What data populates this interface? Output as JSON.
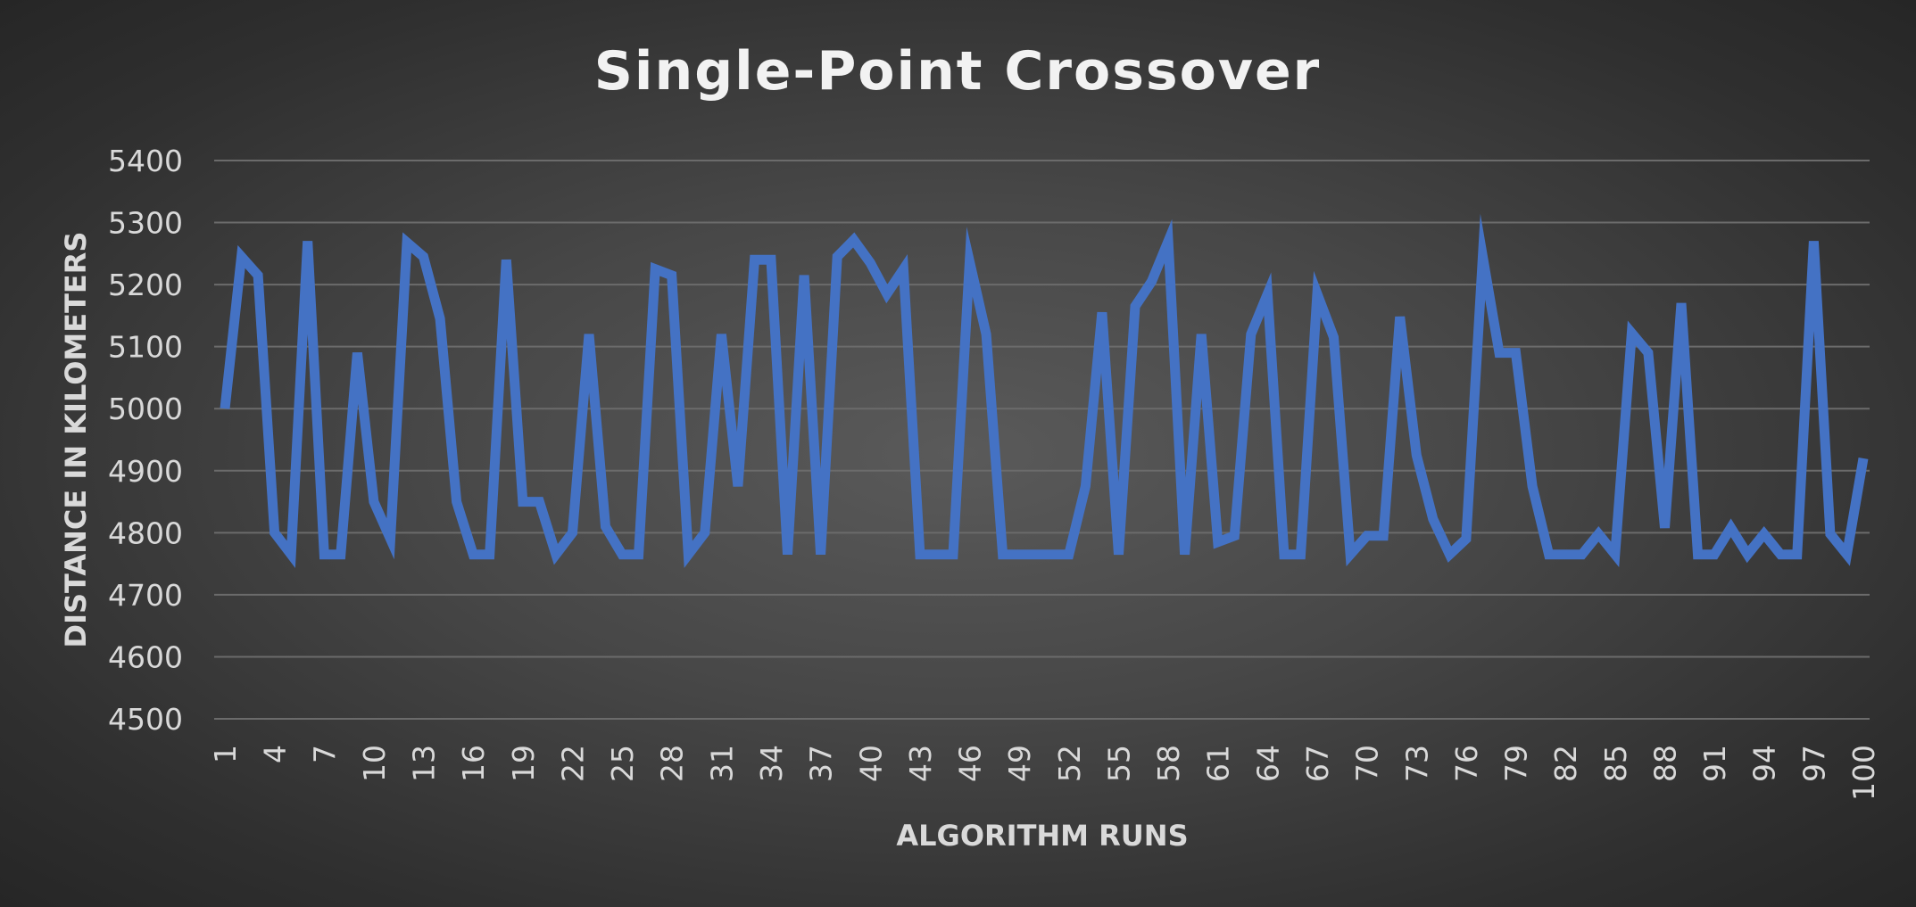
{
  "chart_data": {
    "type": "line",
    "title": "Single-Point Crossover",
    "xlabel": "ALGORITHM RUNS",
    "ylabel": "DISTANCE IN KILOMETERS",
    "ylim": [
      4500,
      5400
    ],
    "y_ticks": [
      4500,
      4600,
      4700,
      4800,
      4900,
      5000,
      5100,
      5200,
      5300,
      5400
    ],
    "y_tick_labels": [
      "4500",
      "4600",
      "4700",
      "4800",
      "4900",
      "5000",
      "5100",
      "5200",
      "5300",
      "5400"
    ],
    "x_tick_labels": [
      "1",
      "4",
      "7",
      "10",
      "13",
      "16",
      "19",
      "22",
      "25",
      "28",
      "31",
      "34",
      "37",
      "40",
      "43",
      "46",
      "49",
      "52",
      "55",
      "58",
      "61",
      "64",
      "67",
      "70",
      "73",
      "76",
      "79",
      "82",
      "85",
      "88",
      "91",
      "94",
      "97",
      "100"
    ],
    "grid": true,
    "legend": "none",
    "colors": {
      "line": "#4472c4",
      "grid": "#6b6b6b",
      "text": "#d9d9d9",
      "title": "#f2f2f2"
    },
    "x": [
      1,
      2,
      3,
      4,
      5,
      6,
      7,
      8,
      9,
      10,
      11,
      12,
      13,
      14,
      15,
      16,
      17,
      18,
      19,
      20,
      21,
      22,
      23,
      24,
      25,
      26,
      27,
      28,
      29,
      30,
      31,
      32,
      33,
      34,
      35,
      36,
      37,
      38,
      39,
      40,
      41,
      42,
      43,
      44,
      45,
      46,
      47,
      48,
      49,
      50,
      51,
      52,
      53,
      54,
      55,
      56,
      57,
      58,
      59,
      60,
      61,
      62,
      63,
      64,
      65,
      66,
      67,
      68,
      69,
      70,
      71,
      72,
      73,
      74,
      75,
      76,
      77,
      78,
      79,
      80,
      81,
      82,
      83,
      84,
      85,
      86,
      87,
      88,
      89,
      90,
      91,
      92,
      93,
      94,
      95,
      96,
      97,
      98,
      99,
      100
    ],
    "series": [
      {
        "values": [
          5000,
          5245,
          5215,
          4800,
          4765,
          5270,
          4765,
          4765,
          5090,
          4850,
          4790,
          5268,
          5245,
          5145,
          4850,
          4765,
          4765,
          5240,
          4850,
          4850,
          4765,
          4800,
          5120,
          4810,
          4765,
          4765,
          5225,
          5215,
          4765,
          4800,
          5120,
          4875,
          5240,
          5240,
          4765,
          5215,
          4765,
          5245,
          5272,
          5235,
          5185,
          5225,
          4765,
          4765,
          4765,
          5237,
          5120,
          4765,
          4765,
          4765,
          4765,
          4765,
          4875,
          5155,
          4765,
          5165,
          5205,
          5270,
          4765,
          5120,
          4785,
          4795,
          5120,
          5185,
          4765,
          4765,
          5185,
          5115,
          4765,
          4795,
          4795,
          5148,
          4925,
          4822,
          4765,
          4790,
          5245,
          5090,
          5090,
          4875,
          4765,
          4765,
          4765,
          4798,
          4765,
          5122,
          5090,
          4808,
          5170,
          4765,
          4765,
          4808,
          4765,
          4798,
          4765,
          4765,
          5270,
          4798,
          4765,
          4920
        ]
      }
    ]
  }
}
